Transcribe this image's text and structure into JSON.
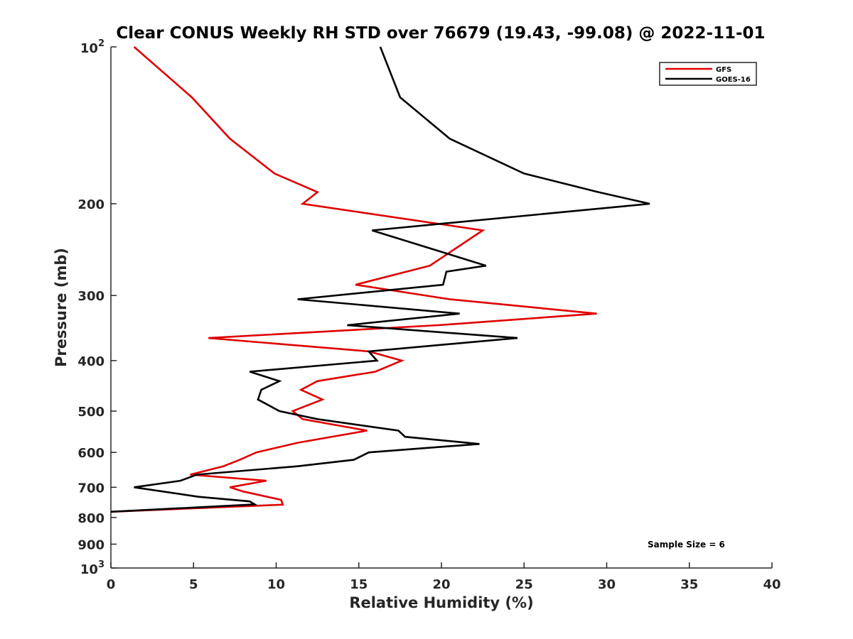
{
  "chart_data": {
    "type": "line",
    "title": "Clear CONUS Weekly RH STD over 76679 (19.43, -99.08) @ 2022-11-01",
    "xlabel": "Relative Humidity (%)",
    "ylabel": "Pressure (mb)",
    "xlim": [
      0,
      40
    ],
    "ylim": [
      100,
      1000
    ],
    "y_scale": "log",
    "y_reversed": true,
    "x_ticks": [
      "0",
      "5",
      "10",
      "15",
      "20",
      "25",
      "30",
      "35",
      "40"
    ],
    "y_ticks": [
      {
        "value": 100,
        "base": "10",
        "exp": "2"
      },
      {
        "value": 200,
        "label": "200"
      },
      {
        "value": 300,
        "label": "300"
      },
      {
        "value": 400,
        "label": "400"
      },
      {
        "value": 500,
        "label": "500"
      },
      {
        "value": 600,
        "label": "600"
      },
      {
        "value": 700,
        "label": "700"
      },
      {
        "value": 800,
        "label": "800"
      },
      {
        "value": 900,
        "label": "900"
      },
      {
        "value": 1000,
        "base": "10",
        "exp": "3"
      }
    ],
    "grid": false,
    "legend_position": "top-right",
    "annotation": "Sample Size = 6",
    "series": [
      {
        "name": "GFS",
        "color": "#e00000",
        "points": [
          [
            1.4,
            100
          ],
          [
            4.9,
            125
          ],
          [
            7.2,
            150
          ],
          [
            9.9,
            175
          ],
          [
            12.5,
            190
          ],
          [
            11.6,
            200
          ],
          [
            22.5,
            225
          ],
          [
            19.3,
            263
          ],
          [
            14.8,
            286
          ],
          [
            20.5,
            305
          ],
          [
            29.4,
            325
          ],
          [
            19.8,
            342
          ],
          [
            5.9,
            362
          ],
          [
            15.6,
            384
          ],
          [
            17.6,
            400
          ],
          [
            16.0,
            420
          ],
          [
            12.5,
            438
          ],
          [
            11.5,
            455
          ],
          [
            12.8,
            475
          ],
          [
            11.0,
            500
          ],
          [
            11.6,
            518
          ],
          [
            15.5,
            545
          ],
          [
            11.3,
            575
          ],
          [
            8.8,
            600
          ],
          [
            7.8,
            620
          ],
          [
            6.8,
            638
          ],
          [
            4.8,
            662
          ],
          [
            9.4,
            680
          ],
          [
            7.2,
            700
          ],
          [
            8.0,
            713
          ],
          [
            10.3,
            740
          ],
          [
            10.4,
            756
          ],
          [
            0,
            780
          ]
        ]
      },
      {
        "name": "GOES-16",
        "color": "#000000",
        "points": [
          [
            16.3,
            100
          ],
          [
            17.5,
            125
          ],
          [
            20.5,
            150
          ],
          [
            25.0,
            175
          ],
          [
            29.5,
            190
          ],
          [
            32.6,
            200
          ],
          [
            15.8,
            225
          ],
          [
            22.7,
            263
          ],
          [
            20.3,
            270
          ],
          [
            20.1,
            286
          ],
          [
            11.3,
            305
          ],
          [
            21.1,
            325
          ],
          [
            14.3,
            342
          ],
          [
            24.6,
            362
          ],
          [
            15.6,
            384
          ],
          [
            16.1,
            400
          ],
          [
            8.4,
            420
          ],
          [
            10.2,
            438
          ],
          [
            9.1,
            455
          ],
          [
            8.9,
            475
          ],
          [
            10.2,
            500
          ],
          [
            12.5,
            518
          ],
          [
            17.4,
            545
          ],
          [
            17.8,
            560
          ],
          [
            22.3,
            578
          ],
          [
            15.6,
            600
          ],
          [
            14.7,
            620
          ],
          [
            11.3,
            638
          ],
          [
            5.2,
            662
          ],
          [
            4.2,
            680
          ],
          [
            1.4,
            700
          ],
          [
            5.3,
            730
          ],
          [
            8.4,
            745
          ],
          [
            8.7,
            755
          ],
          [
            0,
            780
          ]
        ]
      }
    ]
  }
}
